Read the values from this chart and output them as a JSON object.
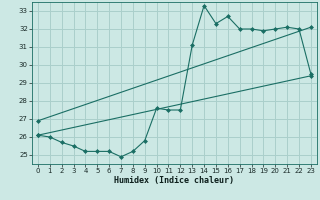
{
  "xlabel": "Humidex (Indice chaleur)",
  "background_color": "#cce8e4",
  "grid_color": "#aacfcb",
  "line_color": "#1a6e64",
  "xlim": [
    -0.5,
    23.5
  ],
  "ylim": [
    24.5,
    33.5
  ],
  "xticks": [
    0,
    1,
    2,
    3,
    4,
    5,
    6,
    7,
    8,
    9,
    10,
    11,
    12,
    13,
    14,
    15,
    16,
    17,
    18,
    19,
    20,
    21,
    22,
    23
  ],
  "yticks": [
    25,
    26,
    27,
    28,
    29,
    30,
    31,
    32,
    33
  ],
  "series1_x": [
    0,
    1,
    2,
    3,
    4,
    5,
    6,
    7,
    8,
    9,
    10,
    11,
    12,
    13,
    14,
    15,
    16,
    17,
    18,
    19,
    20,
    21,
    22,
    23
  ],
  "series1_y": [
    26.1,
    26.0,
    25.7,
    25.5,
    25.2,
    25.2,
    25.2,
    24.9,
    25.2,
    25.8,
    27.6,
    27.5,
    27.5,
    31.1,
    33.3,
    32.3,
    32.7,
    32.0,
    32.0,
    31.9,
    32.0,
    32.1,
    32.0,
    29.5
  ],
  "series2_x": [
    0,
    23
  ],
  "series2_y": [
    26.1,
    29.4
  ],
  "series3_x": [
    0,
    23
  ],
  "series3_y": [
    26.9,
    32.1
  ]
}
